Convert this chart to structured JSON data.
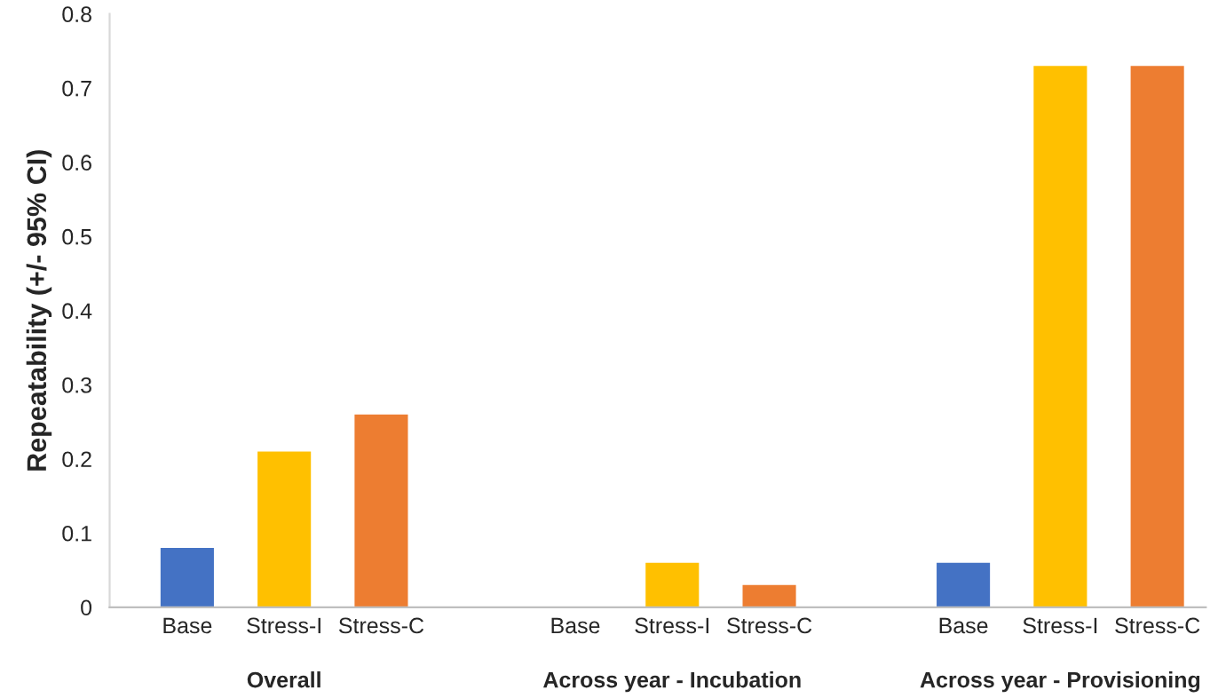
{
  "chart_data": {
    "type": "bar",
    "ylabel": "Repeatability (+/- 95% CI)",
    "categories": [
      "Base",
      "Stress-I",
      "Stress-C",
      "Base",
      "Stress-I",
      "Stress-C",
      "Base",
      "Stress-I",
      "Stress-C"
    ],
    "values": [
      0.08,
      0.21,
      0.26,
      0,
      0.06,
      0.03,
      0.06,
      0.73,
      0.73
    ],
    "colors": [
      "#4472c4",
      "#ffc000",
      "#ed7d31",
      "#4472c4",
      "#ffc000",
      "#ed7d31",
      "#4472c4",
      "#ffc000",
      "#ed7d31"
    ],
    "annotations": [
      "Overall",
      "Across year - Incubation",
      "Across year - Provisioning"
    ],
    "ylim": [
      0,
      0.8
    ],
    "yticks": [
      0,
      0.1,
      0.2,
      0.3,
      0.4,
      0.5,
      0.6,
      0.7,
      0.8
    ],
    "grid": false,
    "legend": false
  }
}
